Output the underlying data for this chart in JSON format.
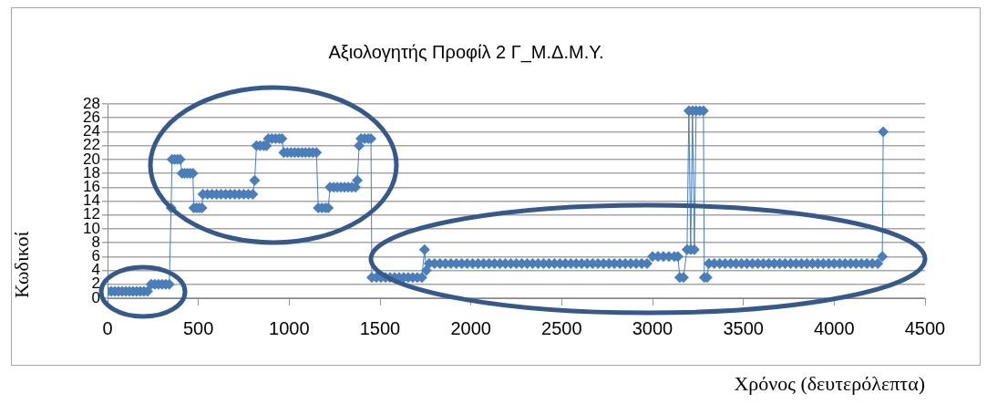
{
  "chart_data": {
    "type": "line",
    "title": "Αξιολογητής Προφίλ 2 Γ_Μ.Δ.Μ.Υ.",
    "xlabel": "Χρόνος (δευτερόλεπτα)",
    "ylabel": "Κωδικοί",
    "x": [
      0,
      20,
      40,
      60,
      80,
      100,
      120,
      140,
      160,
      180,
      200,
      220,
      240,
      260,
      280,
      300,
      320,
      340,
      350,
      355,
      370,
      385,
      400,
      410,
      425,
      440,
      455,
      470,
      475,
      490,
      505,
      520,
      525,
      550,
      575,
      600,
      625,
      650,
      675,
      700,
      725,
      750,
      775,
      800,
      810,
      820,
      840,
      860,
      875,
      885,
      905,
      925,
      945,
      960,
      970,
      990,
      1010,
      1030,
      1050,
      1070,
      1090,
      1110,
      1130,
      1150,
      1160,
      1180,
      1200,
      1215,
      1225,
      1245,
      1265,
      1285,
      1305,
      1325,
      1345,
      1365,
      1375,
      1385,
      1395,
      1415,
      1435,
      1450,
      1455,
      1480,
      1505,
      1530,
      1555,
      1580,
      1605,
      1630,
      1655,
      1680,
      1705,
      1730,
      1745,
      1755,
      1770,
      1800,
      1830,
      1860,
      1890,
      1920,
      1950,
      1980,
      2010,
      2040,
      2070,
      2100,
      2130,
      2160,
      2190,
      2220,
      2250,
      2280,
      2310,
      2340,
      2370,
      2400,
      2430,
      2460,
      2490,
      2520,
      2550,
      2580,
      2610,
      2640,
      2670,
      2700,
      2730,
      2760,
      2790,
      2820,
      2850,
      2880,
      2910,
      2940,
      2970,
      3000,
      3030,
      3060,
      3090,
      3120,
      3140,
      3150,
      3170,
      3190,
      3200,
      3210,
      3220,
      3230,
      3240,
      3260,
      3280,
      3285,
      3300,
      3310,
      3340,
      3370,
      3400,
      3430,
      3460,
      3490,
      3520,
      3550,
      3580,
      3610,
      3640,
      3670,
      3700,
      3730,
      3760,
      3790,
      3820,
      3850,
      3880,
      3910,
      3940,
      3970,
      4000,
      4030,
      4060,
      4090,
      4120,
      4150,
      4180,
      4210,
      4240,
      4265,
      4270
    ],
    "values": [
      1,
      1,
      1,
      1,
      1,
      1,
      1,
      1,
      1,
      1,
      1,
      1,
      2,
      2,
      2,
      2,
      2,
      2,
      13,
      20,
      20,
      20,
      20,
      18,
      18,
      18,
      18,
      18,
      13,
      13,
      13,
      13,
      15,
      15,
      15,
      15,
      15,
      15,
      15,
      15,
      15,
      15,
      15,
      15,
      17,
      22,
      22,
      22,
      22,
      23,
      23,
      23,
      23,
      23,
      21,
      21,
      21,
      21,
      21,
      21,
      21,
      21,
      21,
      21,
      13,
      13,
      13,
      13,
      16,
      16,
      16,
      16,
      16,
      16,
      16,
      16,
      17,
      22,
      23,
      23,
      23,
      23,
      3,
      3,
      3,
      3,
      3,
      3,
      3,
      3,
      3,
      3,
      3,
      3,
      7,
      4,
      5,
      5,
      5,
      5,
      5,
      5,
      5,
      5,
      5,
      5,
      5,
      5,
      5,
      5,
      5,
      5,
      5,
      5,
      5,
      5,
      5,
      5,
      5,
      5,
      5,
      5,
      5,
      5,
      5,
      5,
      5,
      5,
      5,
      5,
      5,
      5,
      5,
      5,
      5,
      5,
      5,
      6,
      6,
      6,
      6,
      6,
      6,
      3,
      3,
      7,
      27,
      7,
      27,
      7,
      27,
      27,
      27,
      3,
      3,
      5,
      5,
      5,
      5,
      5,
      5,
      5,
      5,
      5,
      5,
      5,
      5,
      5,
      5,
      5,
      5,
      5,
      5,
      5,
      5,
      5,
      5,
      5,
      5,
      5,
      5,
      5,
      5,
      5,
      5,
      5,
      5,
      6,
      24
    ],
    "color": "#4a7ebb",
    "xlim": [
      0,
      4500
    ],
    "xticks": [
      0,
      500,
      1000,
      1500,
      2000,
      2500,
      3000,
      3500,
      4000,
      4500
    ],
    "ylim": [
      0,
      28
    ],
    "yticks": [
      0,
      2,
      4,
      6,
      8,
      10,
      12,
      14,
      16,
      18,
      20,
      22,
      24,
      26,
      28
    ],
    "grid": "y",
    "marker": "diamond"
  }
}
